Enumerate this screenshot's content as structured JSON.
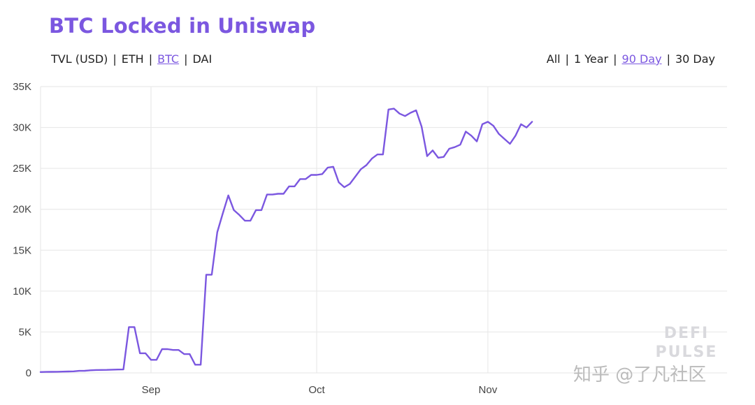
{
  "header": {
    "title": "BTC Locked in Uniswap",
    "units": [
      {
        "label": "TVL (USD)",
        "active": false
      },
      {
        "label": "ETH",
        "active": false
      },
      {
        "label": "BTC",
        "active": true
      },
      {
        "label": "DAI",
        "active": false
      }
    ],
    "ranges": [
      {
        "label": "All",
        "active": false
      },
      {
        "label": "1 Year",
        "active": false
      },
      {
        "label": "90 Day",
        "active": true
      },
      {
        "label": "30 Day",
        "active": false
      }
    ],
    "separator": "|"
  },
  "watermarks": {
    "defi_pulse_line1": "DEFI",
    "defi_pulse_line2": "PULSE",
    "zhihu": "知乎 @了凡社区"
  },
  "colors": {
    "line": "#7b57e0",
    "accent": "#7b57e0",
    "grid": "#e6e6e6"
  },
  "chart_data": {
    "type": "line",
    "title": "BTC Locked in Uniswap",
    "xlabel": "",
    "ylabel": "",
    "ylim": [
      0,
      35000
    ],
    "yticks": [
      0,
      5000,
      10000,
      15000,
      20000,
      25000,
      30000,
      35000
    ],
    "ytick_labels": [
      "0",
      "5K",
      "10K",
      "15K",
      "20K",
      "25K",
      "30K",
      "35K"
    ],
    "xticks": [
      {
        "label": "Sep",
        "at": "2020-09-01"
      },
      {
        "label": "Oct",
        "at": "2020-10-01"
      },
      {
        "label": "Nov",
        "at": "2020-11-01"
      }
    ],
    "grid": true,
    "x_start": "2020-08-12",
    "y": [
      100,
      120,
      130,
      140,
      150,
      170,
      190,
      250,
      260,
      320,
      350,
      360,
      370,
      390,
      410,
      420,
      5600,
      5600,
      2400,
      2400,
      1600,
      1600,
      2900,
      2900,
      2800,
      2800,
      2300,
      2300,
      1000,
      1000,
      12000,
      12000,
      17200,
      19500,
      21700,
      19900,
      19300,
      18600,
      18600,
      19900,
      19900,
      21800,
      21800,
      21900,
      21900,
      22800,
      22800,
      23700,
      23700,
      24200,
      24200,
      24300,
      25100,
      25200,
      23300,
      22700,
      23100,
      24000,
      24900,
      25400,
      26200,
      26700,
      26700,
      32200,
      32300,
      31700,
      31400,
      31800,
      32100,
      30100,
      26500,
      27200,
      26300,
      26400,
      27400,
      27600,
      27900,
      29500,
      29000,
      28300,
      30400,
      30700,
      30200,
      29200,
      28600,
      28000,
      29000,
      30400,
      30000,
      30700
    ]
  }
}
